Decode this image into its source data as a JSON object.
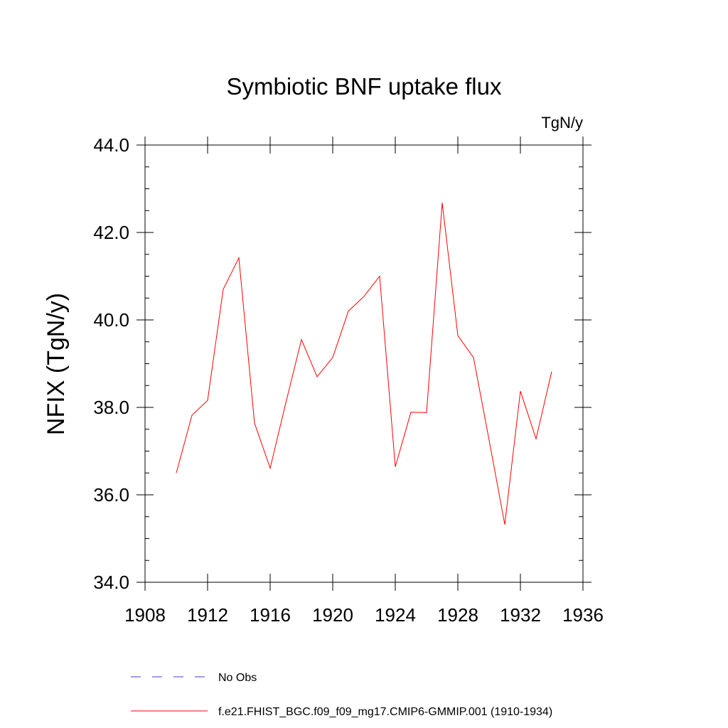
{
  "chart_data": {
    "type": "line",
    "title": "Symbiotic BNF uptake flux",
    "units": "TgN/y",
    "ylabel": "NFIX  (TgN/y)",
    "xlabel": "",
    "xlim": [
      1908,
      1936
    ],
    "ylim": [
      34.0,
      44.0
    ],
    "x_ticks": [
      1908,
      1912,
      1916,
      1920,
      1924,
      1928,
      1932,
      1936
    ],
    "x_tick_labels": [
      "1908",
      "1912",
      "1916",
      "1920",
      "1924",
      "1928",
      "1932",
      "1936"
    ],
    "y_ticks": [
      34,
      36,
      38,
      40,
      42,
      44
    ],
    "y_tick_labels": [
      "34.0",
      "36.0",
      "38.0",
      "40.0",
      "42.0",
      "44.0"
    ],
    "grid": false,
    "legend_position": "bottom",
    "series": [
      {
        "name": "No Obs",
        "style": "dashed",
        "color": "#3c3cd0",
        "x": [],
        "values": []
      },
      {
        "name": "f.e21.FHIST_BGC.f09_f09_mg17.CMIP6-GMMIP.001 (1910-1934)",
        "style": "solid",
        "color": "#ff0000",
        "x": [
          1910,
          1911,
          1912,
          1913,
          1914,
          1915,
          1916,
          1917,
          1918,
          1919,
          1920,
          1921,
          1922,
          1923,
          1924,
          1925,
          1926,
          1927,
          1928,
          1929,
          1930,
          1931,
          1932,
          1933,
          1934
        ],
        "values": [
          36.5,
          37.82,
          38.16,
          40.7,
          41.42,
          37.64,
          36.61,
          38.1,
          39.55,
          38.7,
          39.14,
          40.2,
          40.54,
          41.0,
          36.64,
          37.89,
          37.88,
          42.68,
          39.64,
          39.14,
          37.25,
          35.32,
          38.37,
          37.28,
          38.82
        ]
      }
    ]
  }
}
